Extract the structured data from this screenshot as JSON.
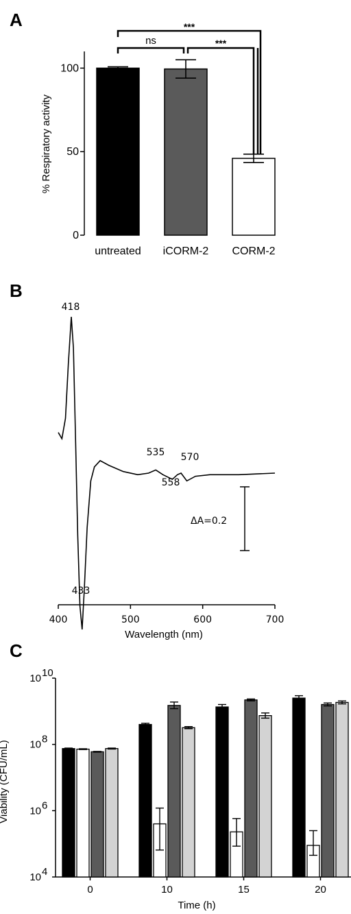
{
  "chart_data": [
    {
      "panel": "A",
      "type": "bar",
      "categories": [
        "untreated",
        "iCORM-2",
        "CORM-2"
      ],
      "values": [
        100,
        99.5,
        46
      ],
      "errors": [
        0.8,
        5.5,
        2.5
      ],
      "colors": [
        "#000000",
        "#5a5a5a",
        "#ffffff"
      ],
      "ylabel": "% Respiratory activity",
      "ylim": [
        0,
        110
      ],
      "yticks": [
        "0",
        "50",
        "100"
      ],
      "significance": [
        {
          "from": "untreated",
          "to": "iCORM-2",
          "label": "ns"
        },
        {
          "from": "iCORM-2",
          "to": "CORM-2",
          "label": "***"
        },
        {
          "from": "untreated",
          "to": "CORM-2",
          "label": "***"
        }
      ]
    },
    {
      "panel": "B",
      "type": "line",
      "xlabel": "Wavelength (nm)",
      "xlim": [
        400,
        700
      ],
      "xticks": [
        "400",
        "500",
        "600",
        "700"
      ],
      "peak_labels": [
        "418",
        "433",
        "535",
        "558",
        "570"
      ],
      "points": [
        [
          400,
          0.26
        ],
        [
          405,
          0.22
        ],
        [
          410,
          0.35
        ],
        [
          414,
          0.7
        ],
        [
          418,
          1.0
        ],
        [
          421,
          0.8
        ],
        [
          424,
          0.2
        ],
        [
          427,
          -0.4
        ],
        [
          430,
          -0.85
        ],
        [
          433,
          -1.0
        ],
        [
          436,
          -0.75
        ],
        [
          440,
          -0.35
        ],
        [
          445,
          -0.05
        ],
        [
          450,
          0.04
        ],
        [
          458,
          0.08
        ],
        [
          470,
          0.05
        ],
        [
          490,
          0.01
        ],
        [
          510,
          -0.01
        ],
        [
          525,
          0.0
        ],
        [
          535,
          0.02
        ],
        [
          545,
          -0.01
        ],
        [
          558,
          -0.04
        ],
        [
          565,
          -0.01
        ],
        [
          570,
          0.0
        ],
        [
          578,
          -0.05
        ],
        [
          590,
          -0.02
        ],
        [
          610,
          -0.01
        ],
        [
          650,
          -0.01
        ],
        [
          700,
          0.0
        ]
      ],
      "scale_bar_label": "ΔA=0.2"
    },
    {
      "panel": "C",
      "type": "bar",
      "ylabel": "Viability (CFU/mL)",
      "xlabel": "Time (h)",
      "log_scale": true,
      "ylim": [
        10000,
        10000000000
      ],
      "yticks": [
        {
          "base": "10",
          "exp": "4"
        },
        {
          "base": "10",
          "exp": "6"
        },
        {
          "base": "10",
          "exp": "8"
        },
        {
          "base": "10",
          "exp": "10"
        }
      ],
      "categories": [
        "0",
        "10",
        "15",
        "20"
      ],
      "series": [
        {
          "color": "#000000",
          "values": [
            75000000,
            400000000,
            1350000000,
            2500000000
          ],
          "err_up": [
            2500000,
            35000000,
            250000000,
            450000000
          ],
          "err_down": [
            2500000,
            30000000,
            180000000,
            350000000
          ]
        },
        {
          "color": "#ffffff",
          "values": [
            72000000,
            400000,
            230000,
            90000
          ],
          "err_up": [
            2000000,
            800000,
            350000,
            160000
          ],
          "err_down": [
            2000000,
            335000,
            145000,
            45000
          ]
        },
        {
          "color": "#5a5a5a",
          "values": [
            60000000,
            1500000000,
            2200000000,
            1600000000
          ],
          "err_up": [
            1500000,
            400000000,
            150000000,
            180000000
          ],
          "err_down": [
            1500000,
            300000000,
            140000000,
            150000000
          ]
        },
        {
          "color": "#d3d3d3",
          "values": [
            75000000,
            320000000,
            740000000,
            1850000000
          ],
          "err_up": [
            2500000,
            25000000,
            150000000,
            200000000
          ],
          "err_down": [
            2500000,
            22000000,
            120000000,
            180000000
          ]
        }
      ]
    }
  ],
  "panels": {
    "a": "A",
    "b": "B",
    "c": "C"
  }
}
